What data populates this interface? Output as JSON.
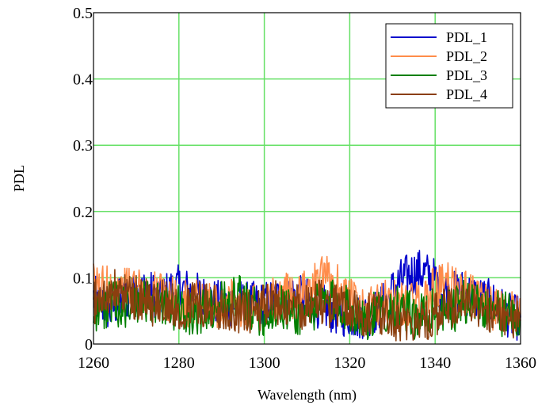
{
  "chart_data": {
    "type": "line",
    "title": "",
    "xlabel": "Wavelength (nm)",
    "ylabel": "PDL",
    "xlim": [
      1260,
      1360
    ],
    "ylim": [
      0,
      0.5
    ],
    "xticks": [
      1260,
      1280,
      1300,
      1320,
      1340,
      1360
    ],
    "xtick_labels": [
      "1260",
      "1280",
      "1300",
      "1320",
      "1340",
      "1360"
    ],
    "yticks": [
      0,
      0.1,
      0.2,
      0.3,
      0.4,
      0.5
    ],
    "ytick_labels": [
      "0",
      "0.1",
      "0.2",
      "0.3",
      "0.4",
      "0.5"
    ],
    "grid": true,
    "grid_color": "#66e066",
    "legend_position": "top-right",
    "series": [
      {
        "name": "PDL_1",
        "color": "#0000cc",
        "x": [
          1260,
          1262,
          1264,
          1266,
          1268,
          1270,
          1272,
          1274,
          1276,
          1278,
          1280,
          1282,
          1284,
          1286,
          1288,
          1290,
          1292,
          1294,
          1296,
          1298,
          1300,
          1302,
          1304,
          1306,
          1308,
          1310,
          1312,
          1314,
          1316,
          1318,
          1320,
          1322,
          1324,
          1326,
          1328,
          1330,
          1332,
          1334,
          1336,
          1338,
          1340,
          1342,
          1344,
          1346,
          1348,
          1350,
          1352,
          1354,
          1356,
          1358,
          1360
        ],
        "values": [
          0.07,
          0.06,
          0.05,
          0.065,
          0.07,
          0.075,
          0.08,
          0.075,
          0.07,
          0.08,
          0.085,
          0.08,
          0.075,
          0.07,
          0.065,
          0.06,
          0.06,
          0.065,
          0.06,
          0.06,
          0.06,
          0.065,
          0.07,
          0.075,
          0.07,
          0.065,
          0.06,
          0.055,
          0.05,
          0.045,
          0.045,
          0.04,
          0.045,
          0.05,
          0.06,
          0.08,
          0.095,
          0.105,
          0.11,
          0.105,
          0.095,
          0.08,
          0.075,
          0.08,
          0.075,
          0.07,
          0.065,
          0.06,
          0.05,
          0.04,
          0.04
        ]
      },
      {
        "name": "PDL_2",
        "color": "#ff8c4a",
        "x": [
          1260,
          1262,
          1264,
          1266,
          1268,
          1270,
          1272,
          1274,
          1276,
          1278,
          1280,
          1282,
          1284,
          1286,
          1288,
          1290,
          1292,
          1294,
          1296,
          1298,
          1300,
          1302,
          1304,
          1306,
          1308,
          1310,
          1312,
          1314,
          1316,
          1318,
          1320,
          1322,
          1324,
          1326,
          1328,
          1330,
          1332,
          1334,
          1336,
          1338,
          1340,
          1342,
          1344,
          1346,
          1348,
          1350,
          1352,
          1354,
          1356,
          1358,
          1360
        ],
        "values": [
          0.09,
          0.085,
          0.09,
          0.08,
          0.085,
          0.08,
          0.075,
          0.08,
          0.07,
          0.07,
          0.065,
          0.06,
          0.065,
          0.06,
          0.055,
          0.06,
          0.065,
          0.06,
          0.055,
          0.06,
          0.06,
          0.065,
          0.07,
          0.075,
          0.07,
          0.08,
          0.09,
          0.1,
          0.095,
          0.085,
          0.065,
          0.055,
          0.05,
          0.055,
          0.06,
          0.07,
          0.065,
          0.06,
          0.06,
          0.07,
          0.085,
          0.09,
          0.09,
          0.085,
          0.075,
          0.065,
          0.055,
          0.05,
          0.05,
          0.045,
          0.045
        ]
      },
      {
        "name": "PDL_3",
        "color": "#007f00",
        "x": [
          1260,
          1262,
          1264,
          1266,
          1268,
          1270,
          1272,
          1274,
          1276,
          1278,
          1280,
          1282,
          1284,
          1286,
          1288,
          1290,
          1292,
          1294,
          1296,
          1298,
          1300,
          1302,
          1304,
          1306,
          1308,
          1310,
          1312,
          1314,
          1316,
          1318,
          1320,
          1322,
          1324,
          1326,
          1328,
          1330,
          1332,
          1334,
          1336,
          1338,
          1340,
          1342,
          1344,
          1346,
          1348,
          1350,
          1352,
          1354,
          1356,
          1358,
          1360
        ],
        "values": [
          0.05,
          0.055,
          0.06,
          0.06,
          0.055,
          0.06,
          0.065,
          0.06,
          0.055,
          0.05,
          0.055,
          0.05,
          0.045,
          0.05,
          0.055,
          0.06,
          0.065,
          0.07,
          0.06,
          0.05,
          0.045,
          0.05,
          0.055,
          0.05,
          0.045,
          0.05,
          0.055,
          0.06,
          0.065,
          0.06,
          0.05,
          0.045,
          0.04,
          0.045,
          0.05,
          0.055,
          0.05,
          0.045,
          0.04,
          0.045,
          0.05,
          0.045,
          0.05,
          0.06,
          0.065,
          0.06,
          0.055,
          0.05,
          0.045,
          0.04,
          0.04
        ]
      },
      {
        "name": "PDL_4",
        "color": "#8b3f0f",
        "x": [
          1260,
          1262,
          1264,
          1266,
          1268,
          1270,
          1272,
          1274,
          1276,
          1278,
          1280,
          1282,
          1284,
          1286,
          1288,
          1290,
          1292,
          1294,
          1296,
          1298,
          1300,
          1302,
          1304,
          1306,
          1308,
          1310,
          1312,
          1314,
          1316,
          1318,
          1320,
          1322,
          1324,
          1326,
          1328,
          1330,
          1332,
          1334,
          1336,
          1338,
          1340,
          1342,
          1344,
          1346,
          1348,
          1350,
          1352,
          1354,
          1356,
          1358,
          1360
        ],
        "values": [
          0.065,
          0.07,
          0.075,
          0.08,
          0.075,
          0.07,
          0.065,
          0.06,
          0.065,
          0.06,
          0.055,
          0.06,
          0.065,
          0.06,
          0.055,
          0.05,
          0.055,
          0.05,
          0.045,
          0.05,
          0.055,
          0.06,
          0.065,
          0.06,
          0.055,
          0.06,
          0.065,
          0.06,
          0.055,
          0.06,
          0.055,
          0.05,
          0.045,
          0.04,
          0.045,
          0.04,
          0.035,
          0.04,
          0.035,
          0.04,
          0.045,
          0.05,
          0.055,
          0.065,
          0.06,
          0.055,
          0.05,
          0.045,
          0.04,
          0.035,
          0.035
        ]
      }
    ]
  }
}
